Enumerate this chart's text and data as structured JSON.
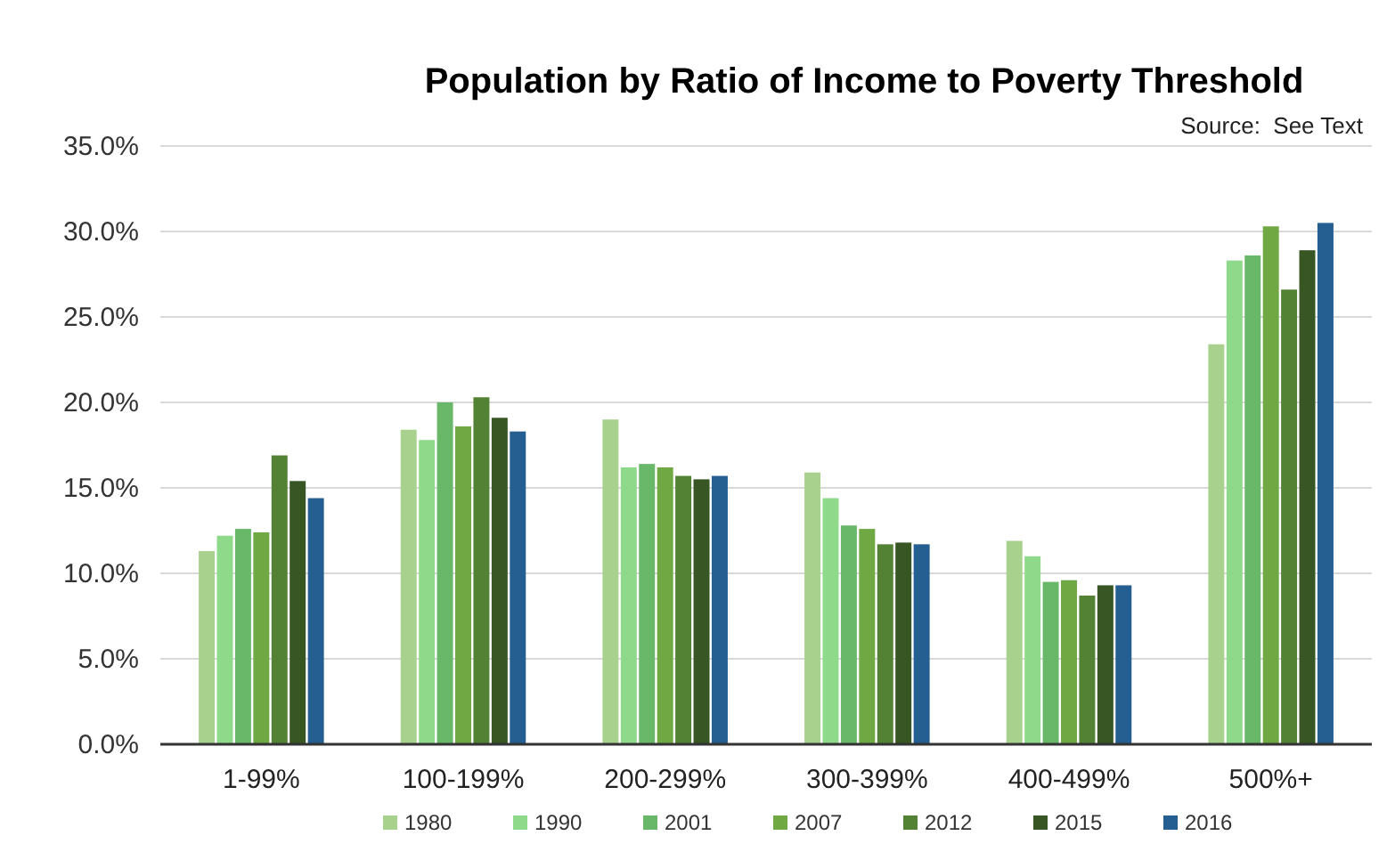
{
  "chart_data": {
    "type": "bar",
    "title": "Population by Ratio of Income to Poverty Threshold",
    "annotations": [
      "Source:  See Text"
    ],
    "categories": [
      "1-99%",
      "100-199%",
      "200-299%",
      "300-399%",
      "400-499%",
      "500%+"
    ],
    "series": [
      {
        "name": "1980",
        "color": "#a9d18e",
        "values": [
          11.3,
          18.4,
          19.0,
          15.9,
          11.9,
          23.4
        ]
      },
      {
        "name": "1990",
        "color": "#8fd98a",
        "values": [
          12.2,
          17.8,
          16.2,
          14.4,
          11.0,
          28.3
        ]
      },
      {
        "name": "2001",
        "color": "#69b86a",
        "values": [
          12.6,
          20.0,
          16.4,
          12.8,
          9.5,
          28.6
        ]
      },
      {
        "name": "2007",
        "color": "#70a844",
        "values": [
          12.4,
          18.6,
          16.2,
          12.6,
          9.6,
          30.3
        ]
      },
      {
        "name": "2012",
        "color": "#548235",
        "values": [
          16.9,
          20.3,
          15.7,
          11.7,
          8.7,
          26.6
        ]
      },
      {
        "name": "2015",
        "color": "#375623",
        "values": [
          15.4,
          19.1,
          15.5,
          11.8,
          9.3,
          28.9
        ]
      },
      {
        "name": "2016",
        "color": "#255e91",
        "values": [
          14.4,
          18.3,
          15.7,
          11.7,
          9.3,
          30.5
        ]
      }
    ],
    "ylim": [
      0,
      35
    ],
    "yticks": [
      {
        "value": 0,
        "label": "0.0%"
      },
      {
        "value": 5,
        "label": "5.0%"
      },
      {
        "value": 10,
        "label": "10.0%"
      },
      {
        "value": 15,
        "label": "15.0%"
      },
      {
        "value": 20,
        "label": "20.0%"
      },
      {
        "value": 25,
        "label": "25.0%"
      },
      {
        "value": 30,
        "label": "30.0%"
      },
      {
        "value": 35,
        "label": "35.0%"
      }
    ],
    "grid": "y",
    "legend": "bottom"
  }
}
